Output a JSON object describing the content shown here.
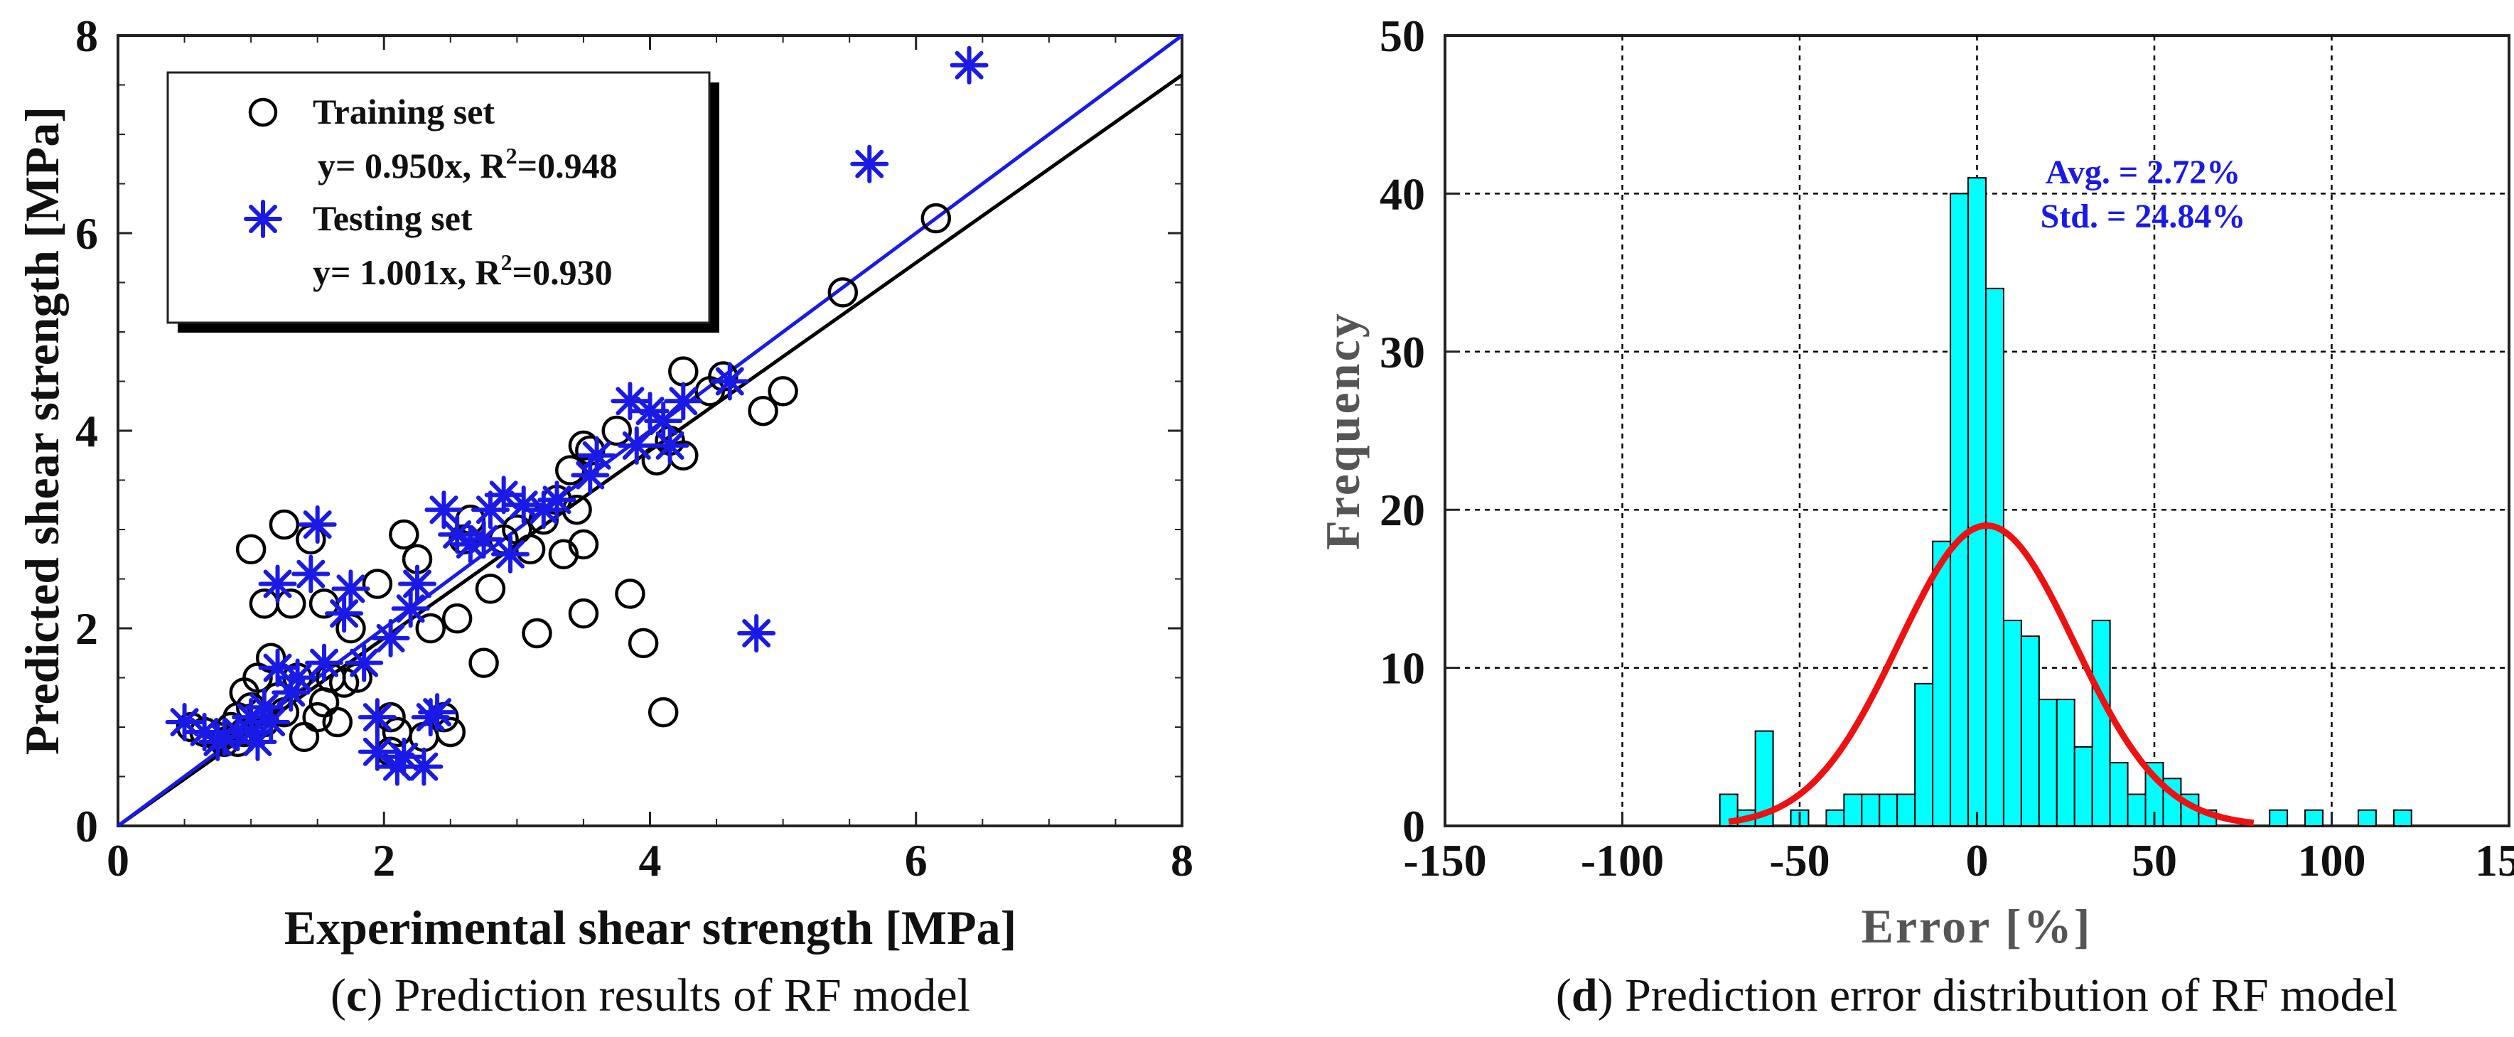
{
  "chart_data": [
    {
      "panel": "c",
      "type": "scatter",
      "caption_letter": "c",
      "caption_text": " Prediction results of RF model",
      "xlabel": "Experimental shear strength [MPa]",
      "ylabel": "Predicted shear strength [MPa]",
      "xlim": [
        0,
        8
      ],
      "ylim": [
        0,
        8
      ],
      "xticks": [
        "0",
        "2",
        "4",
        "6",
        "8"
      ],
      "yticks": [
        "0",
        "2",
        "4",
        "6",
        "8"
      ],
      "grid": false,
      "legend_position": "top-left",
      "colors": {
        "training": "#000000",
        "testing": "#1a1ae6"
      },
      "series": [
        {
          "name": "Training set",
          "fit_label": "y= 0.950x, R",
          "fit_suffix": "=0.948",
          "slope": 0.95,
          "marker": "circle",
          "points": [
            [
              0.55,
              1.0
            ],
            [
              0.65,
              0.95
            ],
            [
              0.75,
              0.9
            ],
            [
              0.8,
              0.85
            ],
            [
              0.85,
              1.0
            ],
            [
              0.9,
              1.1
            ],
            [
              0.95,
              0.95
            ],
            [
              0.95,
              1.35
            ],
            [
              1.0,
              1.2
            ],
            [
              1.0,
              2.8
            ],
            [
              1.05,
              1.5
            ],
            [
              1.1,
              1.05
            ],
            [
              1.1,
              2.25
            ],
            [
              1.15,
              1.7
            ],
            [
              1.2,
              1.3
            ],
            [
              1.25,
              3.05
            ],
            [
              1.3,
              2.25
            ],
            [
              1.35,
              1.5
            ],
            [
              1.4,
              0.9
            ],
            [
              1.45,
              2.9
            ],
            [
              1.5,
              1.1
            ],
            [
              1.55,
              2.25
            ],
            [
              1.6,
              1.5
            ],
            [
              1.65,
              1.05
            ],
            [
              1.7,
              1.45
            ],
            [
              1.75,
              2.0
            ],
            [
              1.8,
              1.5
            ],
            [
              1.95,
              2.45
            ],
            [
              2.05,
              1.1
            ],
            [
              2.1,
              0.95
            ],
            [
              2.15,
              2.95
            ],
            [
              2.25,
              2.7
            ],
            [
              2.3,
              0.9
            ],
            [
              2.35,
              2.0
            ],
            [
              2.45,
              1.1
            ],
            [
              2.5,
              0.95
            ],
            [
              2.55,
              2.1
            ],
            [
              2.6,
              2.9
            ],
            [
              2.65,
              3.1
            ],
            [
              2.75,
              1.65
            ],
            [
              2.8,
              2.4
            ],
            [
              2.9,
              2.9
            ],
            [
              3.0,
              3.0
            ],
            [
              3.1,
              2.8
            ],
            [
              3.15,
              1.95
            ],
            [
              3.2,
              3.1
            ],
            [
              3.3,
              3.3
            ],
            [
              3.35,
              2.75
            ],
            [
              3.4,
              3.6
            ],
            [
              3.45,
              3.2
            ],
            [
              3.5,
              3.85
            ],
            [
              3.5,
              2.85
            ],
            [
              3.5,
              2.15
            ],
            [
              3.55,
              3.8
            ],
            [
              3.75,
              4.0
            ],
            [
              3.85,
              2.35
            ],
            [
              3.95,
              1.85
            ],
            [
              4.05,
              3.7
            ],
            [
              4.1,
              1.15
            ],
            [
              4.15,
              3.9
            ],
            [
              4.25,
              3.75
            ],
            [
              4.25,
              4.6
            ],
            [
              4.45,
              4.4
            ],
            [
              4.55,
              4.55
            ],
            [
              4.85,
              4.2
            ],
            [
              5.0,
              4.4
            ],
            [
              5.45,
              5.4
            ],
            [
              6.15,
              6.15
            ],
            [
              2.05,
              0.75
            ],
            [
              1.55,
              1.25
            ],
            [
              1.25,
              1.15
            ],
            [
              0.9,
              0.85
            ]
          ]
        },
        {
          "name": "Testing set",
          "fit_label": "y= 1.001x, R",
          "fit_suffix": "=0.930",
          "slope": 1.001,
          "marker": "asterisk",
          "points": [
            [
              0.5,
              1.05
            ],
            [
              0.65,
              0.95
            ],
            [
              0.8,
              0.9
            ],
            [
              0.9,
              0.95
            ],
            [
              1.0,
              1.1
            ],
            [
              1.05,
              0.85
            ],
            [
              1.1,
              1.2
            ],
            [
              1.15,
              1.05
            ],
            [
              1.2,
              1.6
            ],
            [
              1.2,
              2.45
            ],
            [
              1.3,
              1.35
            ],
            [
              1.45,
              2.55
            ],
            [
              1.5,
              3.05
            ],
            [
              1.55,
              1.65
            ],
            [
              1.7,
              2.15
            ],
            [
              1.75,
              2.4
            ],
            [
              1.85,
              1.65
            ],
            [
              1.95,
              1.1
            ],
            [
              1.95,
              0.75
            ],
            [
              2.05,
              1.9
            ],
            [
              2.1,
              0.6
            ],
            [
              2.15,
              0.7
            ],
            [
              2.2,
              2.2
            ],
            [
              2.25,
              2.45
            ],
            [
              2.3,
              0.6
            ],
            [
              2.35,
              1.1
            ],
            [
              2.4,
              1.15
            ],
            [
              2.45,
              3.2
            ],
            [
              2.55,
              2.95
            ],
            [
              2.65,
              2.85
            ],
            [
              2.75,
              2.9
            ],
            [
              2.8,
              3.2
            ],
            [
              2.9,
              3.35
            ],
            [
              2.95,
              2.75
            ],
            [
              3.05,
              3.25
            ],
            [
              3.2,
              3.2
            ],
            [
              3.3,
              3.3
            ],
            [
              3.55,
              3.55
            ],
            [
              3.6,
              3.75
            ],
            [
              3.85,
              4.3
            ],
            [
              3.9,
              3.85
            ],
            [
              4.0,
              4.2
            ],
            [
              4.1,
              4.1
            ],
            [
              4.15,
              3.85
            ],
            [
              4.25,
              4.3
            ],
            [
              4.6,
              4.5
            ],
            [
              4.8,
              1.95
            ],
            [
              5.65,
              6.7
            ],
            [
              6.4,
              7.7
            ],
            [
              1.0,
              0.95
            ],
            [
              0.75,
              0.85
            ],
            [
              1.35,
              1.5
            ]
          ]
        }
      ]
    },
    {
      "panel": "d",
      "type": "bar",
      "caption_letter": "d",
      "caption_text": " Prediction error distribution of RF model",
      "xlabel": "Error [%]",
      "ylabel": "Frequency",
      "xlim": [
        -150,
        150
      ],
      "ylim": [
        0,
        50
      ],
      "xticks": [
        "-150",
        "-100",
        "-50",
        "0",
        "50",
        "100",
        "150"
      ],
      "yticks": [
        "0",
        "10",
        "20",
        "30",
        "40",
        "50"
      ],
      "grid": true,
      "bin_width": 5,
      "colors": {
        "bars": "#00ffff",
        "curve": "#ee1111",
        "annotation": "#1a1ae6"
      },
      "histogram": {
        "bin_left_edges": [
          -72.5,
          -67.5,
          -62.5,
          -52.5,
          -42.5,
          -37.5,
          -32.5,
          -27.5,
          -22.5,
          -17.5,
          -12.5,
          -7.5,
          -2.5,
          2.5,
          7.5,
          12.5,
          17.5,
          22.5,
          27.5,
          32.5,
          37.5,
          42.5,
          47.5,
          52.5,
          57.5,
          62.5,
          82.5,
          92.5,
          107.5,
          117.5
        ],
        "counts": [
          2,
          1,
          6,
          1,
          1,
          2,
          2,
          2,
          2,
          9,
          18,
          40,
          41,
          34,
          13,
          12,
          8,
          8,
          5,
          13,
          4,
          2,
          4,
          3,
          2,
          1,
          1,
          1,
          1,
          1
        ]
      },
      "normal_fit": {
        "mean": 2.72,
        "std": 24.84,
        "peak": 19
      },
      "annotations": [
        "Avg. = 2.72%",
        "Std. = 24.84%"
      ]
    }
  ]
}
